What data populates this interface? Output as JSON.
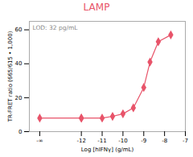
{
  "chart_data": {
    "type": "line",
    "title": "LAMP",
    "xlabel": "Log [hIFNγ] (g/mL)",
    "ylabel": "TR-FRET ratio (665/615 • 1,000)",
    "annotation": "LOD: 32 pg/mL",
    "x": [
      -14,
      -12,
      -12,
      -11,
      -10.5,
      -10,
      -9.5,
      -9,
      -8.7,
      -8.3,
      -7.7
    ],
    "values": [
      8,
      8,
      8,
      8,
      9,
      10.5,
      14,
      26,
      41,
      53,
      57
    ],
    "color": "#e8546a",
    "marker": "diamond",
    "xlim": [
      -14.5,
      -7
    ],
    "ylim": [
      0,
      65
    ],
    "xticks": [
      {
        "value": -14,
        "label": "-∞"
      },
      -12,
      -11,
      -10,
      -9,
      -8,
      -7
    ],
    "yticks": [
      0,
      20,
      40,
      60
    ],
    "grid": false
  }
}
